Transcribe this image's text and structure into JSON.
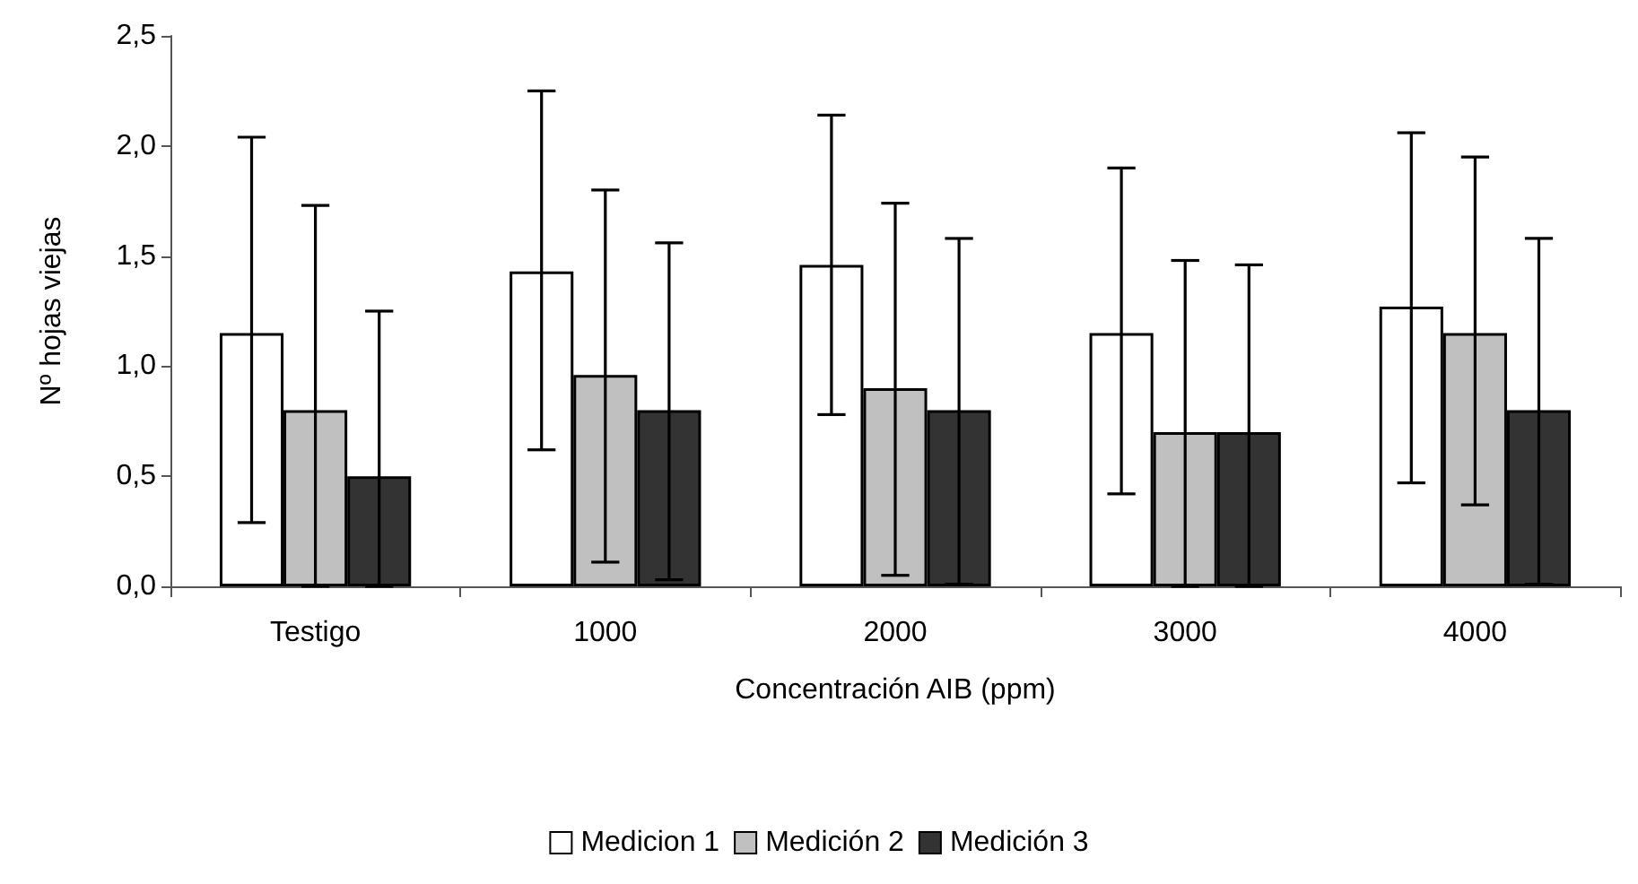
{
  "chart_data": {
    "type": "bar",
    "xlabel": "Concentración AIB (ppm)",
    "ylabel": "Nº hojas viejas",
    "categories": [
      "Testigo",
      "1000",
      "2000",
      "3000",
      "4000"
    ],
    "series": [
      {
        "name": "Medicion 1",
        "color": "#ffffff",
        "values": [
          1.15,
          1.43,
          1.46,
          1.15,
          1.27
        ],
        "errors": [
          [
            0.29,
            2.04
          ],
          [
            0.62,
            2.25
          ],
          [
            0.78,
            2.14
          ],
          [
            0.42,
            1.9
          ],
          [
            0.47,
            2.06
          ]
        ]
      },
      {
        "name": "Medición 2",
        "color": "#c0c0c0",
        "values": [
          0.8,
          0.96,
          0.9,
          0.7,
          1.15
        ],
        "errors": [
          [
            0,
            1.73
          ],
          [
            0.11,
            1.8
          ],
          [
            0.05,
            1.74
          ],
          [
            0,
            1.48
          ],
          [
            0.37,
            1.95
          ]
        ]
      },
      {
        "name": "Medición 3",
        "color": "#333333",
        "values": [
          0.5,
          0.8,
          0.8,
          0.7,
          0.8
        ],
        "errors": [
          [
            0,
            1.25
          ],
          [
            0.03,
            1.56
          ],
          [
            0.01,
            1.58
          ],
          [
            0,
            1.46
          ],
          [
            0.01,
            1.58
          ]
        ]
      }
    ],
    "ylim": [
      0,
      2.5
    ],
    "yticks": [
      {
        "value": 0,
        "label": "0,0"
      },
      {
        "value": 0.5,
        "label": "0,5"
      },
      {
        "value": 1,
        "label": "1,0"
      },
      {
        "value": 1.5,
        "label": "1,5"
      },
      {
        "value": 2,
        "label": "2,0"
      },
      {
        "value": 2.5,
        "label": "2,5"
      }
    ],
    "grid": false,
    "legend": "bottom"
  }
}
